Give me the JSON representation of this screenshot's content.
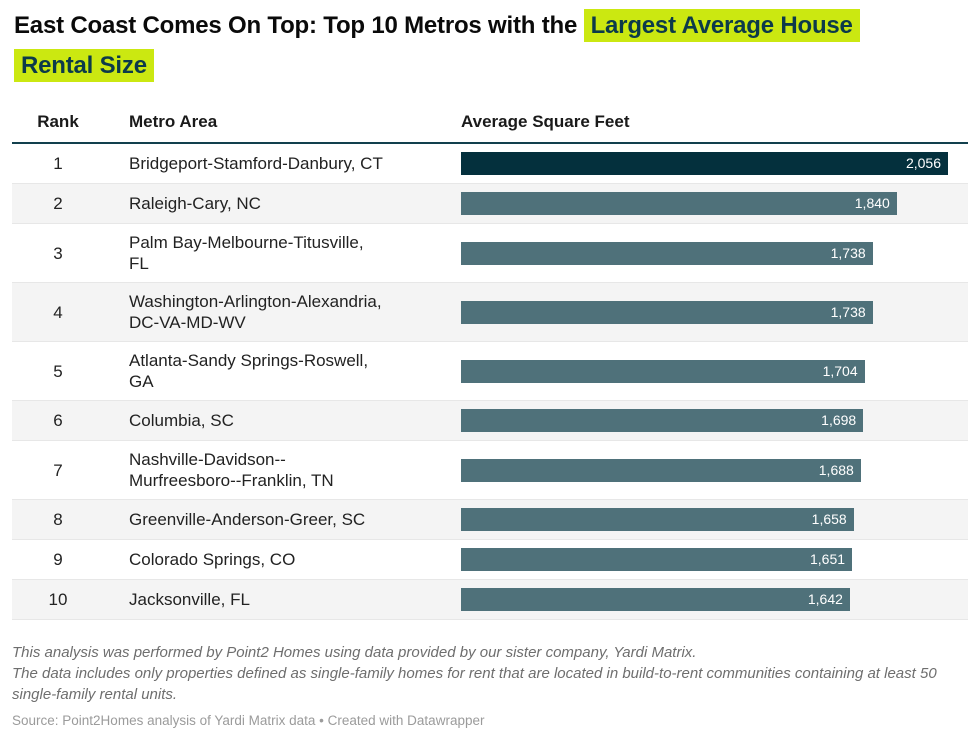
{
  "title": {
    "line1_normal": "East Coast Comes On Top: Top 10 Metros with the",
    "line1_highlight": "Largest Average House",
    "line2_highlight": "Rental Size"
  },
  "colors": {
    "highlight_bg": "#cbe811",
    "highlight_text": "#0c3a4a",
    "bar_top": "#04303d",
    "bar_default": "#4f717a",
    "header_rule": "#12404d",
    "zebra_row_bg": "#f4f4f4",
    "bar_value_text": "#ffffff"
  },
  "chart_data": {
    "type": "table",
    "title": "East Coast Comes On Top: Top 10 Metros with the Largest Average House Rental Size",
    "columns": [
      "Rank",
      "Metro Area",
      "Average Square Feet"
    ],
    "value_column": "Average Square Feet",
    "value_axis_min": 0,
    "value_axis_max": 2056,
    "rows": [
      {
        "rank": "1",
        "metro_lines": [
          "Bridgeport-Stamford-Danbury, CT"
        ],
        "value": 2056,
        "value_label": "2,056",
        "top": true
      },
      {
        "rank": "2",
        "metro_lines": [
          "Raleigh-Cary, NC"
        ],
        "value": 1840,
        "value_label": "1,840",
        "top": false
      },
      {
        "rank": "3",
        "metro_lines": [
          "Palm Bay-Melbourne-Titusville,",
          "FL"
        ],
        "value": 1738,
        "value_label": "1,738",
        "top": false
      },
      {
        "rank": "4",
        "metro_lines": [
          "Washington-Arlington-Alexandria,",
          "DC-VA-MD-WV"
        ],
        "value": 1738,
        "value_label": "1,738",
        "top": false
      },
      {
        "rank": "5",
        "metro_lines": [
          "Atlanta-Sandy Springs-Roswell,",
          "GA"
        ],
        "value": 1704,
        "value_label": "1,704",
        "top": false
      },
      {
        "rank": "6",
        "metro_lines": [
          "Columbia, SC"
        ],
        "value": 1698,
        "value_label": "1,698",
        "top": false
      },
      {
        "rank": "7",
        "metro_lines": [
          "Nashville-Davidson--",
          "Murfreesboro--Franklin, TN"
        ],
        "value": 1688,
        "value_label": "1,688",
        "top": false
      },
      {
        "rank": "8",
        "metro_lines": [
          "Greenville-Anderson-Greer, SC"
        ],
        "value": 1658,
        "value_label": "1,658",
        "top": false
      },
      {
        "rank": "9",
        "metro_lines": [
          "Colorado Springs, CO"
        ],
        "value": 1651,
        "value_label": "1,651",
        "top": false
      },
      {
        "rank": "10",
        "metro_lines": [
          "Jacksonville, FL"
        ],
        "value": 1642,
        "value_label": "1,642",
        "top": false
      }
    ]
  },
  "notes": {
    "line1": "This analysis was performed by Point2 Homes using data provided by our sister company, Yardi Matrix.",
    "line2": "The data includes only properties defined as single-family homes for rent that are located in build-to-rent communities containing at least 50 single-family rental units."
  },
  "source": {
    "label": "Source: ",
    "source_link": "Point2Homes analysis of Yardi Matrix data",
    "separator": " • ",
    "credit": "Created with Datawrapper"
  }
}
